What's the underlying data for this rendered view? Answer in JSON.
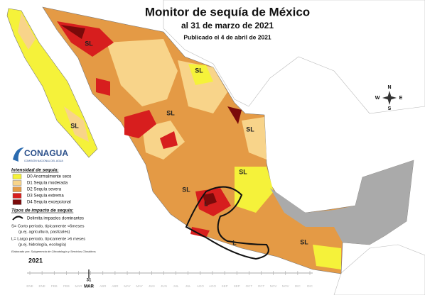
{
  "title": "Monitor de sequía de México",
  "subtitle": "al 31 de marzo de 2021",
  "published": "Publicado el 4 de abril de 2021",
  "logo": "CONAGUA",
  "logo_tagline": "COMISIÓN NACIONAL DEL AGUA",
  "compass": {
    "north": "N",
    "south": "S",
    "east": "E",
    "west": "W"
  },
  "legend": {
    "title": "Intensidad de sequía:",
    "items": [
      {
        "label": "D0 Anormalmente seco",
        "color": "#f5f23a"
      },
      {
        "label": "D1 Sequía moderada",
        "color": "#f8d48a"
      },
      {
        "label": "D2 Sequía severa",
        "color": "#e49a45"
      },
      {
        "label": "D3 Sequía extrema",
        "color": "#d71e1e"
      },
      {
        "label": "D4 Sequía excepcional",
        "color": "#7a0a0a"
      }
    ]
  },
  "impact": {
    "title": "Tipos de impacto de sequía:",
    "line_label": "Delimita impactos dominantes",
    "notes": [
      "S= Corto periodo, típicamente <6meses",
      "(p.ej. agricultura, pastizales)",
      "L= Largo periodo, típicamente >6 meses",
      "(p.ej. hidrología, ecología)"
    ]
  },
  "credit": "Elaborado por: Subgerencia de Climatología y Servicios Climáticos",
  "map_labels": [
    "SL",
    "SL",
    "SL",
    "SL",
    "SL",
    "SL",
    "SL",
    "L",
    "L",
    "SL"
  ],
  "timeline": {
    "year": "2021",
    "day": "31",
    "month": "MAR",
    "months": [
      "ENE",
      "ENE",
      "FEB",
      "FEB",
      "MAR",
      "MAR",
      "ABR",
      "ABR",
      "MAY",
      "MAY",
      "JUN",
      "JUN",
      "JUL",
      "JUL",
      "AGO",
      "AGO",
      "SEP",
      "SEP",
      "OCT",
      "OCT",
      "NOV",
      "NOV",
      "DIC",
      "DIC"
    ]
  }
}
